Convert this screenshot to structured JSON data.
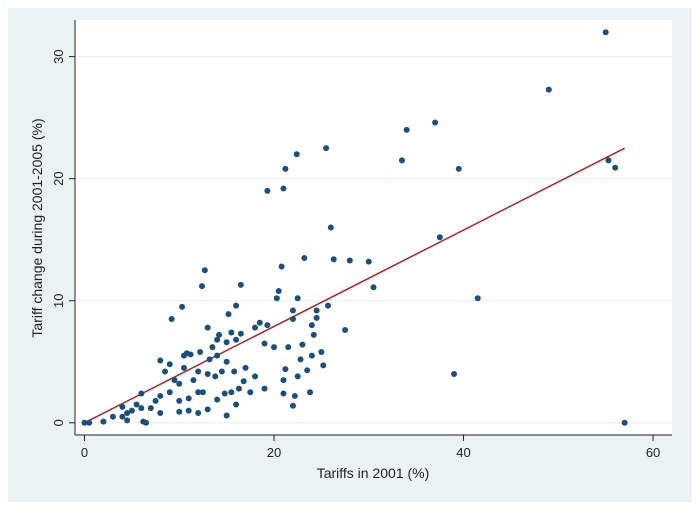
{
  "chart_data": {
    "type": "scatter",
    "xlabel": "Tariffs in 2001 (%)",
    "ylabel": "Tariff change during 2001-2005 (%)",
    "xlim": [
      -1,
      62
    ],
    "ylim": [
      -1,
      33
    ],
    "xticks": [
      0,
      20,
      40,
      60
    ],
    "yticks": [
      0,
      10,
      20,
      30
    ],
    "grid": "horizontal",
    "colors": {
      "points": "#1f4e79",
      "fit_line": "#a0282d",
      "background": "#eaf2f3",
      "plot_area": "#ffffff"
    },
    "fit_line": {
      "x": [
        0,
        57
      ],
      "y": [
        0,
        22.5
      ]
    },
    "points": [
      [
        0,
        0
      ],
      [
        0.5,
        0
      ],
      [
        2,
        0.1
      ],
      [
        3,
        0.5
      ],
      [
        4,
        0.5
      ],
      [
        4.5,
        0.2
      ],
      [
        4,
        1.3
      ],
      [
        4.5,
        0.8
      ],
      [
        5,
        1
      ],
      [
        5.5,
        1.5
      ],
      [
        6,
        1.2
      ],
      [
        6.2,
        0.1
      ],
      [
        6.5,
        0
      ],
      [
        6,
        2.4
      ],
      [
        7,
        1.2
      ],
      [
        7.5,
        1.8
      ],
      [
        8,
        2.2
      ],
      [
        8,
        0.8
      ],
      [
        8.5,
        4.2
      ],
      [
        8,
        5.1
      ],
      [
        9,
        4.8
      ],
      [
        9,
        2.5
      ],
      [
        9.2,
        8.5
      ],
      [
        9.5,
        3.5
      ],
      [
        10,
        3.2
      ],
      [
        10,
        0.9
      ],
      [
        10,
        1.8
      ],
      [
        10.3,
        9.5
      ],
      [
        10.5,
        5.5
      ],
      [
        10.5,
        4.5
      ],
      [
        10.8,
        5.7
      ],
      [
        11,
        1
      ],
      [
        11,
        2
      ],
      [
        11.2,
        5.6
      ],
      [
        11.5,
        3.5
      ],
      [
        12,
        0.8
      ],
      [
        12,
        2.5
      ],
      [
        12,
        4.2
      ],
      [
        12.2,
        5.8
      ],
      [
        12.4,
        11.2
      ],
      [
        12.7,
        12.5
      ],
      [
        12.5,
        2.5
      ],
      [
        13,
        7.8
      ],
      [
        13,
        1.1
      ],
      [
        13,
        4
      ],
      [
        13.2,
        5.2
      ],
      [
        13.5,
        6.2
      ],
      [
        13.8,
        3.8
      ],
      [
        14,
        6.8
      ],
      [
        14,
        1.9
      ],
      [
        14,
        5.5
      ],
      [
        14.2,
        7.2
      ],
      [
        14.5,
        4.2
      ],
      [
        14.8,
        2.4
      ],
      [
        15,
        5
      ],
      [
        15,
        6.6
      ],
      [
        15.2,
        8.9
      ],
      [
        15,
        0.6
      ],
      [
        15.5,
        2.5
      ],
      [
        15.5,
        7.4
      ],
      [
        15.8,
        4.2
      ],
      [
        16,
        6.8
      ],
      [
        16,
        9.6
      ],
      [
        16,
        1.5
      ],
      [
        16.3,
        2.8
      ],
      [
        16.5,
        7.3
      ],
      [
        16.8,
        3.4
      ],
      [
        17,
        4.5
      ],
      [
        16.5,
        11.3
      ],
      [
        17.5,
        2.5
      ],
      [
        18,
        7.8
      ],
      [
        18,
        3.8
      ],
      [
        18.5,
        8.2
      ],
      [
        19,
        6.5
      ],
      [
        19.3,
        8
      ],
      [
        19,
        2.8
      ],
      [
        19.3,
        19
      ],
      [
        20,
        6.2
      ],
      [
        20.3,
        10.2
      ],
      [
        20.5,
        10.8
      ],
      [
        20.8,
        12.8
      ],
      [
        21,
        2.4
      ],
      [
        21,
        3.5
      ],
      [
        21.2,
        4.4
      ],
      [
        21,
        19.2
      ],
      [
        21.2,
        20.8
      ],
      [
        21.5,
        6.2
      ],
      [
        22,
        8.5
      ],
      [
        22,
        1.4
      ],
      [
        22.2,
        2.2
      ],
      [
        22.5,
        3.8
      ],
      [
        22.8,
        5.2
      ],
      [
        23,
        6.4
      ],
      [
        22,
        9.2
      ],
      [
        22.5,
        10.2
      ],
      [
        22.4,
        22
      ],
      [
        23.2,
        13.5
      ],
      [
        23.5,
        4.3
      ],
      [
        23.8,
        2.5
      ],
      [
        24,
        8
      ],
      [
        24,
        5.5
      ],
      [
        24.2,
        7.2
      ],
      [
        24.5,
        8.6
      ],
      [
        24.5,
        9.2
      ],
      [
        25,
        5.8
      ],
      [
        25.2,
        4.7
      ],
      [
        25.5,
        22.5
      ],
      [
        25.7,
        9.6
      ],
      [
        26,
        16
      ],
      [
        26.3,
        13.4
      ],
      [
        27.5,
        7.6
      ],
      [
        28,
        13.3
      ],
      [
        30,
        13.2
      ],
      [
        30.5,
        11.1
      ],
      [
        33.5,
        21.5
      ],
      [
        34,
        24
      ],
      [
        37,
        24.6
      ],
      [
        37.5,
        15.2
      ],
      [
        39,
        4
      ],
      [
        39.5,
        20.8
      ],
      [
        41.5,
        10.2
      ],
      [
        49,
        27.3
      ],
      [
        55,
        32
      ],
      [
        55.3,
        21.5
      ],
      [
        56,
        20.9
      ],
      [
        57,
        0
      ]
    ]
  }
}
